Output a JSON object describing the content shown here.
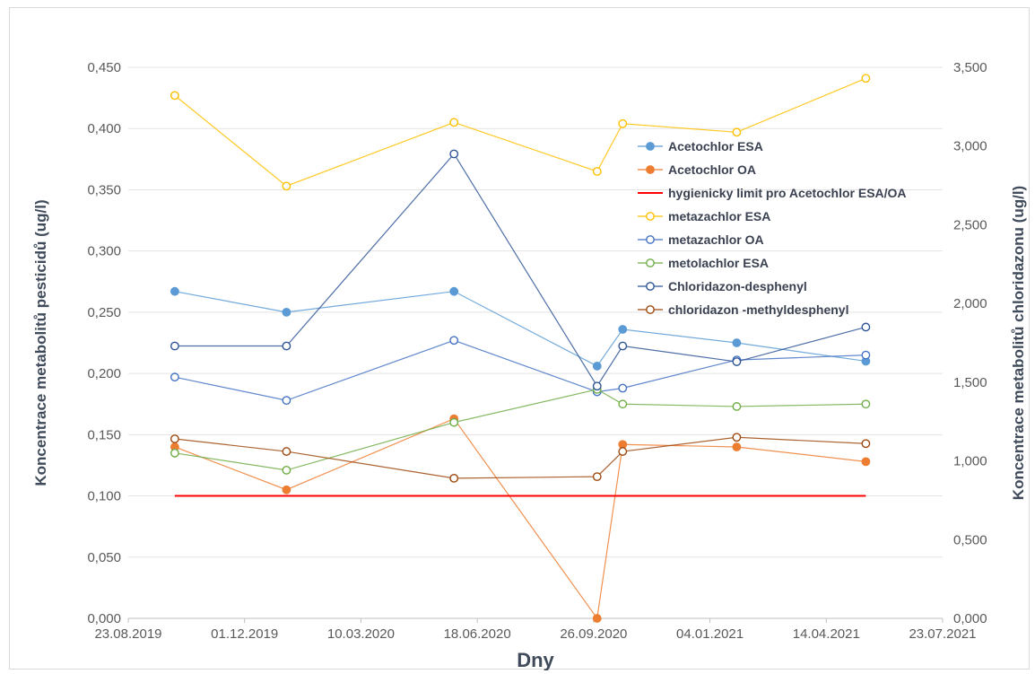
{
  "chart_data": {
    "type": "line",
    "title": "",
    "xlabel": "Dny",
    "ylabel": "Koncentrace metabolitů pesticidů (ug/l)",
    "y2label": "Koncentrace metabolitů chloridazonu (ug/l)",
    "x_ticks": [
      "23.08.2019",
      "01.12.2019",
      "10.03.2020",
      "18.06.2020",
      "26.09.2020",
      "04.01.2021",
      "14.04.2021",
      "23.07.2021"
    ],
    "xlim": [
      "2019-08-23",
      "2021-07-23"
    ],
    "ylim": [
      0,
      0.45
    ],
    "y2lim": [
      0,
      3.5
    ],
    "y_ticks": [
      "0,000",
      "0,050",
      "0,100",
      "0,150",
      "0,200",
      "0,250",
      "0,300",
      "0,350",
      "0,400",
      "0,450"
    ],
    "y2_ticks": [
      "0,000",
      "0,500",
      "1,000",
      "1,500",
      "2,000",
      "2,500",
      "3,000",
      "3,500"
    ],
    "grid": true,
    "legend_position": "inside-right",
    "x": [
      "2019-10-02",
      "2020-01-06",
      "2020-05-29",
      "2020-09-29",
      "2020-10-21",
      "2021-01-27",
      "2021-05-18"
    ],
    "series": [
      {
        "name": "Acetochlor ESA",
        "color": "#5b9bd5",
        "marker": "filled",
        "axis": "left",
        "values": [
          0.267,
          0.25,
          0.267,
          0.206,
          0.236,
          0.225,
          0.21
        ]
      },
      {
        "name": "Acetochlor OA",
        "color": "#ed7d31",
        "marker": "filled",
        "axis": "left",
        "values": [
          0.14,
          0.105,
          0.163,
          0.0,
          0.142,
          0.14,
          0.128
        ]
      },
      {
        "name": "hygienicky limit pro Acetochlor ESA/OA",
        "color": "#ff0000",
        "marker": "none",
        "axis": "left",
        "values": [
          0.1,
          0.1,
          0.1,
          0.1,
          0.1,
          0.1,
          0.1
        ]
      },
      {
        "name": "metazachlor ESA",
        "color": "#ffc000",
        "marker": "open",
        "axis": "left",
        "values": [
          0.427,
          0.353,
          0.405,
          0.365,
          0.404,
          0.397,
          0.441
        ]
      },
      {
        "name": "metazachlor OA",
        "color": "#4472c4",
        "marker": "open",
        "axis": "left",
        "values": [
          0.197,
          0.178,
          0.227,
          0.185,
          0.188,
          0.211,
          0.215
        ]
      },
      {
        "name": "metolachlor ESA",
        "color": "#70ad47",
        "marker": "open",
        "axis": "left",
        "values": [
          0.135,
          0.121,
          0.16,
          0.187,
          0.175,
          0.173,
          0.175
        ]
      },
      {
        "name": "Chloridazon-desphenyl",
        "color": "#2f5597",
        "marker": "open",
        "axis": "right",
        "values": [
          1.73,
          1.73,
          2.95,
          1.475,
          1.73,
          1.63,
          1.85
        ]
      },
      {
        "name": "chloridazon -methyldesphenyl",
        "color": "#9e480e",
        "marker": "open",
        "axis": "right",
        "values": [
          1.14,
          1.06,
          0.89,
          0.9,
          1.06,
          1.15,
          1.11
        ]
      }
    ]
  }
}
